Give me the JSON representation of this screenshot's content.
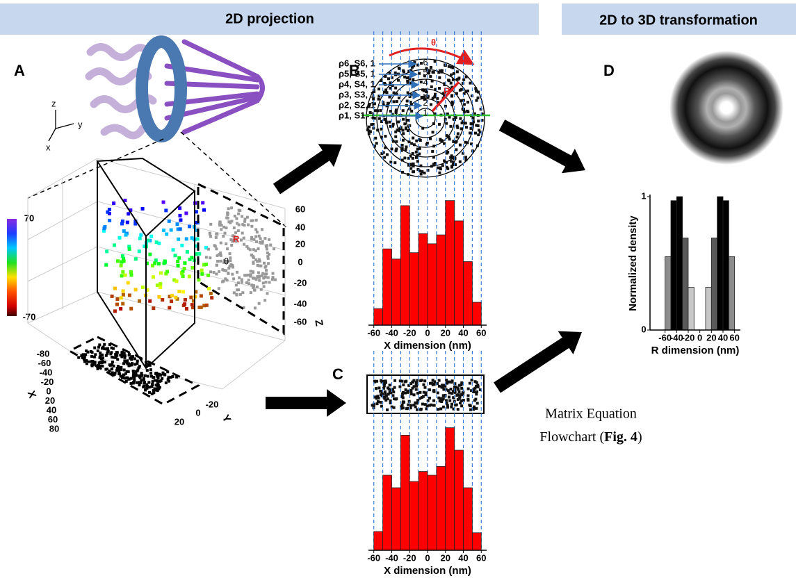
{
  "header": {
    "left": "2D projection",
    "right": "2D to 3D transformation"
  },
  "panel_a": {
    "letter": "A",
    "orient": [
      "z",
      "y",
      "x"
    ],
    "colorbar": [
      "70",
      "-70"
    ],
    "axes": [
      "X",
      "Y",
      "Z"
    ],
    "z_ticks": [
      "60",
      "40",
      "20",
      "0",
      "-20",
      "-40",
      "-60"
    ],
    "x_ticks": [
      "-80",
      "-60",
      "-40",
      "-20",
      "0",
      "20",
      "40",
      "60",
      "80"
    ],
    "y_ticks": [
      "-20",
      "0",
      "20"
    ],
    "side_labels": [
      "R",
      "θ"
    ]
  },
  "panel_b": {
    "letter": "B",
    "rows": [
      "ρ6, S6, 1",
      "ρ5, S5, 1",
      "ρ4, S4, 1",
      "ρ3, S3, 1",
      "ρ2, S2, 1",
      "ρ1, S1, 1"
    ],
    "rings": [
      "1",
      "2",
      "3",
      "4",
      "5",
      "6"
    ],
    "theta": "θ",
    "r": "R"
  },
  "panel_c": {
    "letter": "C"
  },
  "panel_d": {
    "letter": "D"
  },
  "note": {
    "line1": "Matrix Equation",
    "line2_start": "Flowchart (",
    "line2_ref": "Fig. 4",
    "line2_end": ")"
  },
  "chart_data": [
    {
      "type": "histogram",
      "bins": [
        -60,
        -50,
        -40,
        -30,
        -20,
        -10,
        0,
        10,
        20,
        30,
        40,
        50,
        60
      ],
      "values": [
        0.13,
        0.6,
        0.52,
        0.94,
        0.57,
        0.72,
        0.64,
        0.71,
        0.98,
        0.82,
        0.5,
        0.18
      ],
      "color": "#ff0000",
      "xlim": [
        -66,
        66
      ],
      "ylim": [
        0,
        1
      ],
      "xticks": [
        -60,
        -40,
        -20,
        0,
        20,
        40,
        60
      ],
      "xlabel": "X dimension (nm)",
      "gridlines": true
    },
    {
      "type": "histogram",
      "bins": [
        -60,
        -50,
        -40,
        -30,
        -20,
        -10,
        0,
        10,
        20,
        30,
        40,
        50,
        60
      ],
      "values": [
        0.15,
        0.6,
        0.5,
        0.92,
        0.55,
        0.63,
        0.6,
        0.67,
        0.98,
        0.8,
        0.5,
        0.14
      ],
      "color": "#ff0000",
      "xlim": [
        -66,
        66
      ],
      "ylim": [
        0,
        1
      ],
      "xticks": [
        -60,
        -40,
        -20,
        0,
        20,
        40,
        60
      ],
      "xlabel": "X dimension (nm)",
      "gridlines": true
    },
    {
      "type": "histogram",
      "bins": [
        -60,
        -50,
        -40,
        -30,
        -20,
        -10,
        0,
        10,
        20,
        30,
        40,
        50,
        60
      ],
      "values": [
        0.55,
        0.97,
        1.0,
        0.69,
        0.32,
        null,
        null,
        0.32,
        0.69,
        1.0,
        0.97,
        0.55
      ],
      "colors": [
        "#8c8c8c",
        "#000000",
        "#000000",
        "#5a5a5a",
        "#c8c8c8",
        null,
        null,
        "#c8c8c8",
        "#5a5a5a",
        "#000000",
        "#000000",
        "#8c8c8c"
      ],
      "xlim": [
        -86,
        70
      ],
      "ylim": [
        0,
        1
      ],
      "xticks": [
        -60,
        -40,
        -20,
        0,
        20,
        40,
        60
      ],
      "yticks": [
        0,
        1
      ],
      "xlabel": "R dimension (nm)",
      "ylabel": "Normalized density",
      "gridlines": false
    }
  ]
}
